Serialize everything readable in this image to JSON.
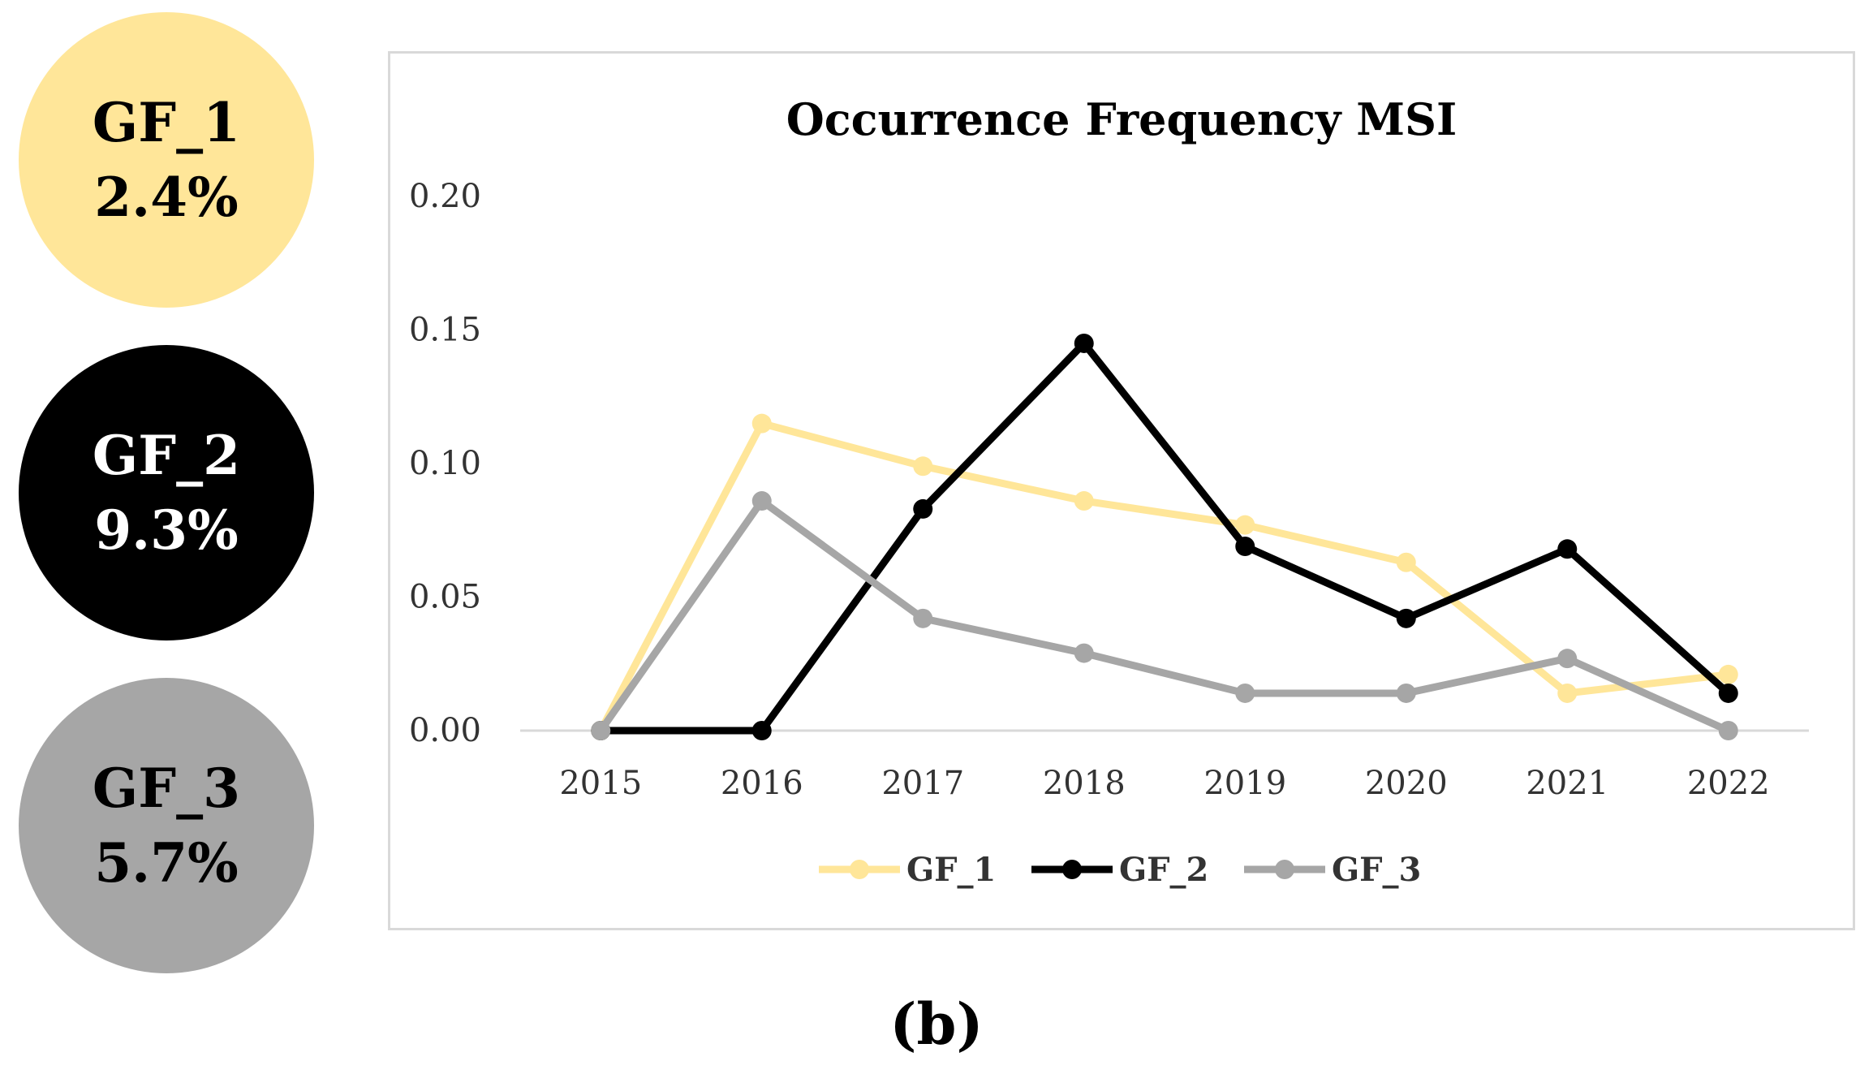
{
  "badges": [
    {
      "name": "GF_1",
      "value": "2.4%",
      "color": "#ffe699"
    },
    {
      "name": "GF_2",
      "value": "9.3%",
      "color": "#000000"
    },
    {
      "name": "GF_3",
      "value": "5.7%",
      "color": "#a6a6a6"
    }
  ],
  "panel_label": "(b)",
  "chart_data": {
    "type": "line",
    "title": "Occurrence Frequency MSI",
    "xlabel": "",
    "ylabel": "",
    "categories": [
      "2015",
      "2016",
      "2017",
      "2018",
      "2019",
      "2020",
      "2021",
      "2022"
    ],
    "y_ticks": [
      "0.00",
      "0.05",
      "0.10",
      "0.15",
      "0.20"
    ],
    "ylim": [
      0,
      0.2
    ],
    "grid": "none",
    "legend": "bottom-center",
    "series": [
      {
        "name": "GF_1",
        "color": "#ffe699",
        "values": [
          0.0,
          0.115,
          0.099,
          0.086,
          0.077,
          0.063,
          0.014,
          0.021
        ]
      },
      {
        "name": "GF_2",
        "color": "#000000",
        "values": [
          0.0,
          0.0,
          0.083,
          0.145,
          0.069,
          0.042,
          0.068,
          0.014
        ]
      },
      {
        "name": "GF_3",
        "color": "#a6a6a6",
        "values": [
          0.0,
          0.086,
          0.042,
          0.029,
          0.014,
          0.014,
          0.027,
          0.0
        ]
      }
    ]
  }
}
